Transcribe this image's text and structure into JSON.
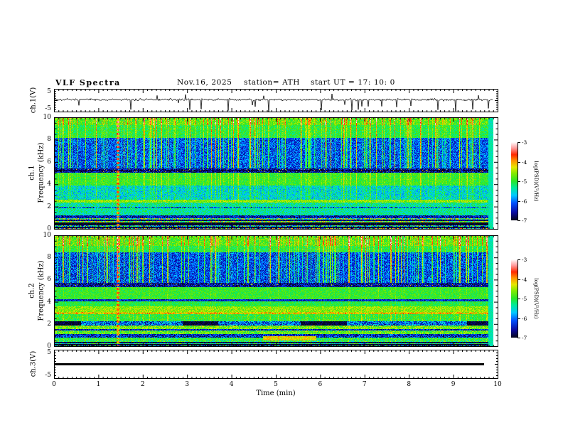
{
  "header": {
    "title": "VLF Spectra",
    "date": "Nov.16, 2025",
    "station": "station= ATH",
    "start_ut": "start UT =  17: 10: 0"
  },
  "axes": {
    "time": {
      "label": "Time (min)",
      "min": 0,
      "max": 10,
      "tick_labels": [
        "0",
        "1",
        "2",
        "3",
        "4",
        "5",
        "6",
        "7",
        "8",
        "9",
        "10"
      ]
    },
    "freq": {
      "label": "Frequency (kHz)",
      "min": 0,
      "max": 10,
      "tick_labels": [
        "10",
        "8",
        "6",
        "4",
        "2",
        "0"
      ]
    },
    "wave": {
      "min": -5,
      "max": 5,
      "tick_labels": [
        "5",
        "-5"
      ]
    }
  },
  "panels": {
    "wave1": {
      "ylabel": "ch.1(V)"
    },
    "spec1": {
      "ylabel_line1": "ch.1",
      "ylabel_line2": "Frequency (kHz)"
    },
    "spec2": {
      "ylabel_line1": "ch.2",
      "ylabel_line2": "Frequency (kHz)"
    },
    "wave3": {
      "ylabel": "ch.3(V)"
    }
  },
  "colorbar": {
    "label": "log(PSD)(V²/Hz)",
    "min": -7,
    "max": -3,
    "tick_labels": [
      "-3",
      "-4",
      "-5",
      "-6",
      "-7"
    ],
    "gradient_stops": [
      {
        "t": 0.0,
        "color": "#050519"
      },
      {
        "t": 0.1,
        "color": "#0a0aa0"
      },
      {
        "t": 0.22,
        "color": "#0050ff"
      },
      {
        "t": 0.32,
        "color": "#00c8ff"
      },
      {
        "t": 0.42,
        "color": "#00eb96"
      },
      {
        "t": 0.5,
        "color": "#28e628"
      },
      {
        "t": 0.6,
        "color": "#82eb00"
      },
      {
        "t": 0.68,
        "color": "#e6e600"
      },
      {
        "t": 0.76,
        "color": "#ff9600"
      },
      {
        "t": 0.84,
        "color": "#ff2800"
      },
      {
        "t": 0.92,
        "color": "#ff9696"
      },
      {
        "t": 1.0,
        "color": "#ffffff"
      }
    ]
  },
  "chart_data": [
    {
      "type": "line",
      "name": "ch.1 voltage waveform",
      "xlim": [
        0,
        10
      ],
      "ylim": [
        -5,
        5
      ],
      "seed": 7,
      "baseline": 0.4,
      "noise_sd": 0.35,
      "spike_down": {
        "prob": 0.028,
        "min": 1.6,
        "max": 5.2
      },
      "spike_up": {
        "prob": 0.015,
        "min": 1.0,
        "max": 3.2
      },
      "data_end_min": 9.9
    },
    {
      "type": "heatmap",
      "name": "ch.1 spectrogram",
      "xlim": [
        0,
        10
      ],
      "ylim": [
        0,
        10
      ],
      "zlim": [
        -7,
        -3
      ],
      "colorbar_label": "log(PSD)(V²/Hz)",
      "seed": 42,
      "data_end_min": 9.9,
      "edge_column": {
        "t0": 9.78,
        "level": -5.4
      },
      "bands": [
        [
          0.0,
          0.12,
          -5.2,
          1.8
        ],
        [
          0.12,
          0.22,
          -6.9,
          0.3
        ],
        [
          0.22,
          0.38,
          -5.6,
          1.2
        ],
        [
          0.38,
          0.58,
          -7.0,
          0.2
        ],
        [
          0.58,
          0.72,
          -4.8,
          1.0
        ],
        [
          0.72,
          0.85,
          -6.8,
          0.4
        ],
        [
          0.85,
          1.0,
          -5.1,
          1.2
        ],
        [
          1.0,
          1.25,
          -6.5,
          0.5
        ],
        [
          1.25,
          2.42,
          -5.35,
          0.4
        ],
        [
          2.42,
          2.62,
          -4.6,
          0.35
        ],
        [
          2.62,
          3.9,
          -5.55,
          0.45
        ],
        [
          3.9,
          5.05,
          -4.95,
          0.3
        ],
        [
          5.05,
          5.45,
          -6.6,
          0.5
        ],
        [
          5.45,
          8.2,
          -6.15,
          0.5
        ],
        [
          8.2,
          9.3,
          -5.05,
          0.35
        ],
        [
          9.3,
          10.01,
          -4.8,
          0.4
        ]
      ],
      "lines": [
        {
          "f": 5.25,
          "hw": 0.06,
          "level": -6.9,
          "var": 0.3,
          "p": 0.9
        },
        {
          "f": 5.25,
          "hw": 0.12,
          "level": -4.3,
          "var": 0.4,
          "p": 0.04
        },
        {
          "f": 1.95,
          "hw": 0.04,
          "level": -6.3,
          "var": 0.6,
          "p": 0.6
        }
      ],
      "events": [],
      "streaks": {
        "prob": 0.3,
        "min": 0.3,
        "max": 1.8,
        "full_threshold": 1.55,
        "bands": [
          [
            5.45,
            8.2,
            1.0
          ],
          [
            8.2,
            9.3,
            0.5
          ],
          [
            9.3,
            10.01,
            0.75
          ],
          [
            3.9,
            5.05,
            0.25
          ],
          [
            2.62,
            3.9,
            0.3
          ]
        ]
      },
      "harmonic_column": {
        "t": 1.43,
        "half_width": 0.035,
        "spacing": 0.37,
        "blob": 0.09,
        "level": -4.0
      }
    },
    {
      "type": "heatmap",
      "name": "ch.2 spectrogram",
      "xlim": [
        0,
        10
      ],
      "ylim": [
        0,
        10
      ],
      "zlim": [
        -7,
        -3
      ],
      "colorbar_label": "log(PSD)(V²/Hz)",
      "seed": 1337,
      "data_end_min": 9.9,
      "edge_column": {
        "t0": 9.78,
        "level": -5.4
      },
      "bands": [
        [
          0.0,
          0.1,
          -6.0,
          1.5
        ],
        [
          0.1,
          0.22,
          -7.0,
          0.2
        ],
        [
          0.22,
          0.32,
          -5.3,
          0.8
        ],
        [
          0.32,
          0.42,
          -6.9,
          0.3
        ],
        [
          0.42,
          0.55,
          -5.1,
          0.7
        ],
        [
          0.55,
          0.8,
          -5.0,
          0.5
        ],
        [
          0.8,
          1.1,
          -6.4,
          0.6
        ],
        [
          1.1,
          1.45,
          -4.8,
          0.5
        ],
        [
          1.45,
          1.55,
          -6.4,
          0.5
        ],
        [
          1.55,
          1.9,
          -4.7,
          0.5
        ],
        [
          1.9,
          2.25,
          -6.1,
          0.7
        ],
        [
          2.25,
          2.9,
          -5.0,
          0.35
        ],
        [
          2.9,
          3.1,
          -4.35,
          0.55
        ],
        [
          3.1,
          3.65,
          -4.6,
          0.35
        ],
        [
          3.65,
          4.1,
          -5.05,
          0.3
        ],
        [
          4.1,
          4.28,
          -6.4,
          0.4
        ],
        [
          4.28,
          5.35,
          -4.95,
          0.3
        ],
        [
          5.35,
          5.75,
          -6.6,
          0.5
        ],
        [
          5.75,
          8.5,
          -6.2,
          0.5
        ],
        [
          8.5,
          9.1,
          -5.05,
          0.35
        ],
        [
          9.1,
          10.01,
          -4.8,
          0.4
        ]
      ],
      "lines": [
        {
          "f": 5.55,
          "hw": 0.12,
          "level": -4.3,
          "var": 0.4,
          "p": 0.04
        },
        {
          "f": 3.0,
          "hw": 0.06,
          "level": -4.0,
          "var": 0.4,
          "p": 0.5
        }
      ],
      "events": [
        {
          "t0": 0.0,
          "t1": 0.6,
          "f0": 1.9,
          "f1": 2.25,
          "level": -6.9,
          "var": 0.25
        },
        {
          "t0": 2.9,
          "t1": 3.7,
          "f0": 1.9,
          "f1": 2.25,
          "level": -6.9,
          "var": 0.25
        },
        {
          "t0": 5.55,
          "t1": 6.6,
          "f0": 1.9,
          "f1": 2.25,
          "level": -6.9,
          "var": 0.25
        },
        {
          "t0": 9.3,
          "t1": 9.78,
          "f0": 1.9,
          "f1": 2.25,
          "level": -6.9,
          "var": 0.25
        },
        {
          "t0": 4.7,
          "t1": 5.9,
          "f0": 0.55,
          "f1": 0.9,
          "level": -4.25,
          "var": 0.35
        }
      ],
      "streaks": {
        "prob": 0.3,
        "min": 0.3,
        "max": 1.8,
        "full_threshold": 1.55,
        "bands": [
          [
            5.75,
            8.5,
            1.0
          ],
          [
            8.5,
            9.1,
            0.5
          ],
          [
            9.1,
            10.01,
            0.75
          ],
          [
            2.25,
            2.9,
            0.2
          ]
        ]
      },
      "harmonic_column": {
        "t": 1.43,
        "half_width": 0.035,
        "spacing": 0.37,
        "blob": 0.09,
        "level": -4.0
      }
    },
    {
      "type": "line",
      "name": "ch.3 voltage waveform",
      "xlim": [
        0,
        10
      ],
      "ylim": [
        -5,
        5
      ],
      "constant_value": 0,
      "line_thickness": 3,
      "data_end_min": 9.68
    }
  ]
}
